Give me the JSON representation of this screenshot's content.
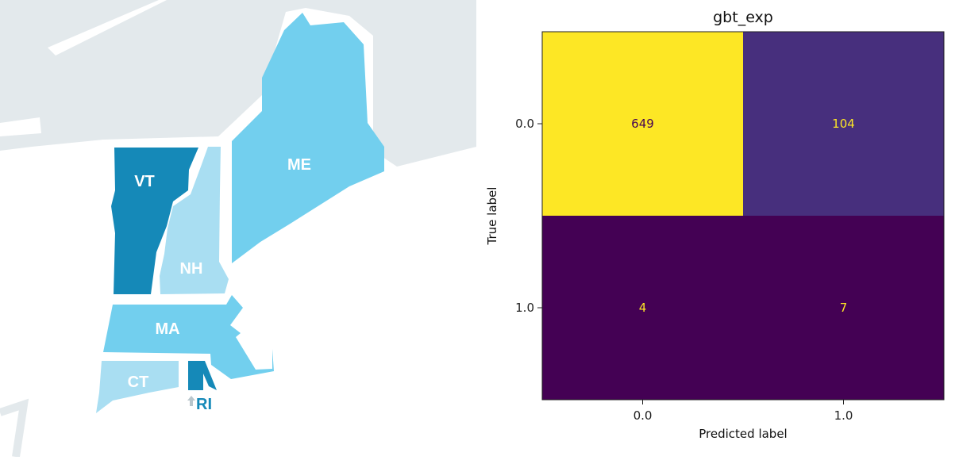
{
  "map": {
    "colors": {
      "water": "#e3e9ec",
      "land_border": "#ffffff",
      "dark": "#1589b8",
      "medium": "#72cfee",
      "light": "#a9def2"
    },
    "states": [
      {
        "abbr": "VT",
        "shade": "dark"
      },
      {
        "abbr": "NH",
        "shade": "light"
      },
      {
        "abbr": "ME",
        "shade": "medium"
      },
      {
        "abbr": "MA",
        "shade": "medium"
      },
      {
        "abbr": "CT",
        "shade": "light"
      },
      {
        "abbr": "RI",
        "shade": "dark"
      }
    ]
  },
  "chart_data": {
    "type": "heatmap",
    "title": "gbt_exp",
    "xlabel": "Predicted label",
    "ylabel": "True label",
    "x_categories": [
      "0.0",
      "1.0"
    ],
    "y_categories": [
      "0.0",
      "1.0"
    ],
    "values": [
      [
        649,
        104
      ],
      [
        4,
        7
      ]
    ],
    "colormap": "viridis",
    "cell_colors": [
      [
        "#fde725",
        "#472f7d"
      ],
      [
        "#440154",
        "#440154"
      ]
    ],
    "text_colors": [
      [
        "#440154",
        "#fde725"
      ],
      [
        "#fde725",
        "#fde725"
      ]
    ],
    "grid": false
  }
}
